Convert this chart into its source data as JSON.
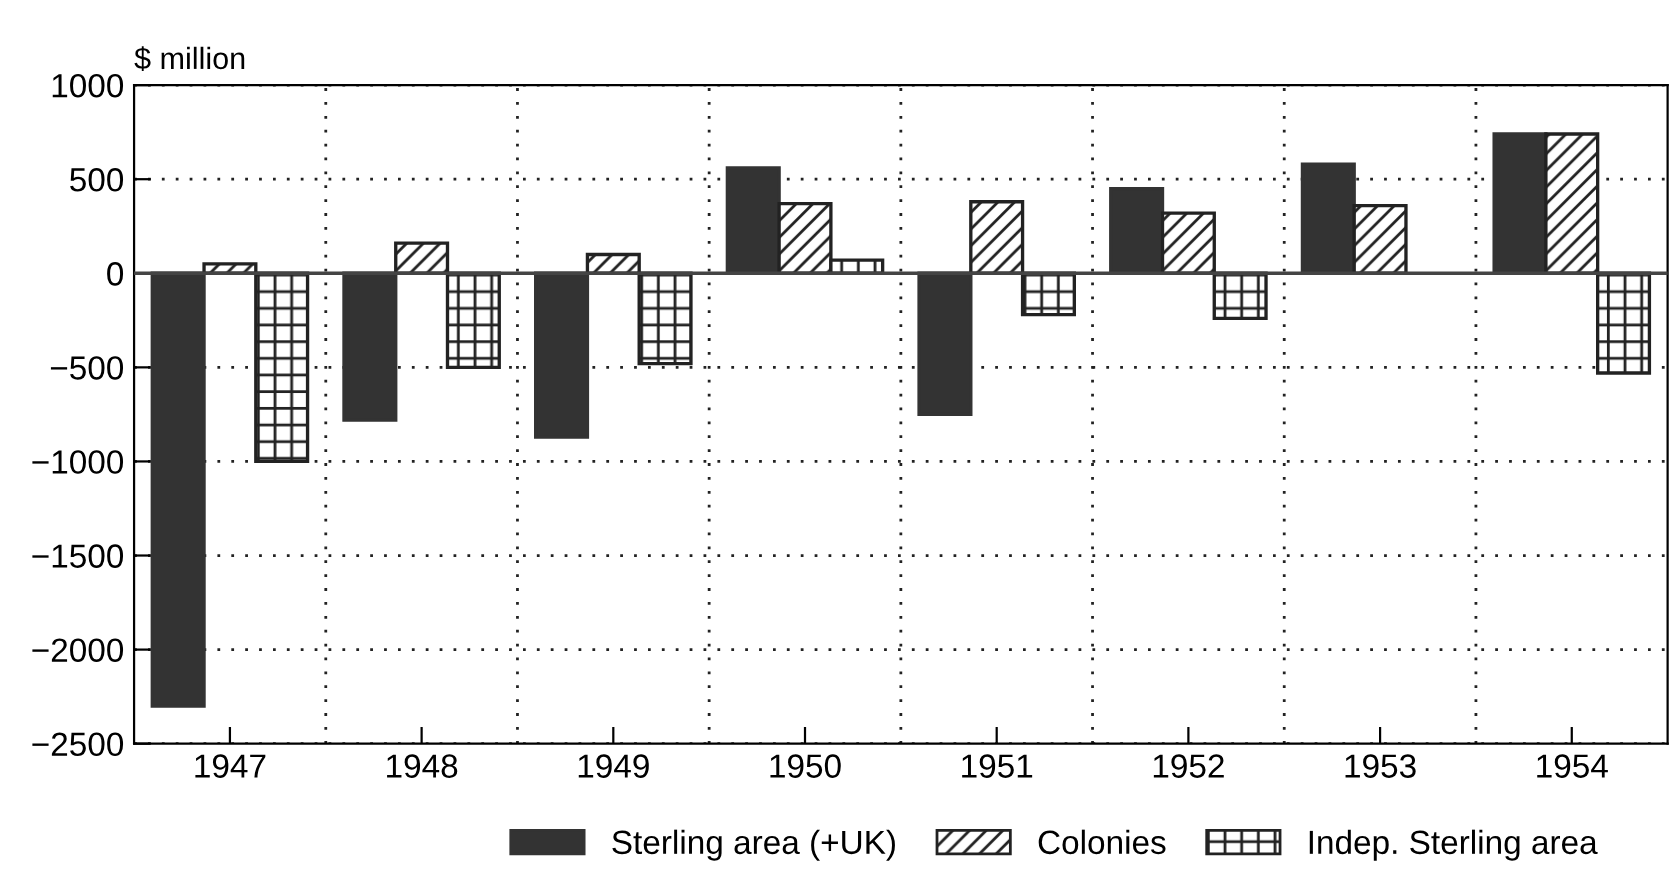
{
  "chart_data": {
    "type": "bar",
    "ylabel": "$ million",
    "categories": [
      "1947",
      "1948",
      "1949",
      "1950",
      "1951",
      "1952",
      "1953",
      "1954"
    ],
    "series": [
      {
        "name": "Sterling area (+UK)",
        "color": "#333333",
        "values": [
          -2300,
          -780,
          -870,
          560,
          -750,
          450,
          580,
          740
        ]
      },
      {
        "name": "Colonies",
        "color": "#222222",
        "values": [
          50,
          160,
          100,
          370,
          380,
          320,
          360,
          740
        ]
      },
      {
        "name": "Indep. Sterling area",
        "color": "#222222",
        "values": [
          -1000,
          -500,
          -480,
          70,
          -220,
          -240,
          null,
          -530
        ]
      }
    ],
    "ylim": [
      -2500,
      1000
    ],
    "yticks": [
      {
        "value": -2500,
        "label": "−2500"
      },
      {
        "value": -2000,
        "label": "−2000"
      },
      {
        "value": -1500,
        "label": "−1500"
      },
      {
        "value": -1000,
        "label": "−1000"
      },
      {
        "value": -500,
        "label": "−500"
      },
      0,
      500,
      1000
    ],
    "grid": true,
    "legend": "bottom"
  }
}
